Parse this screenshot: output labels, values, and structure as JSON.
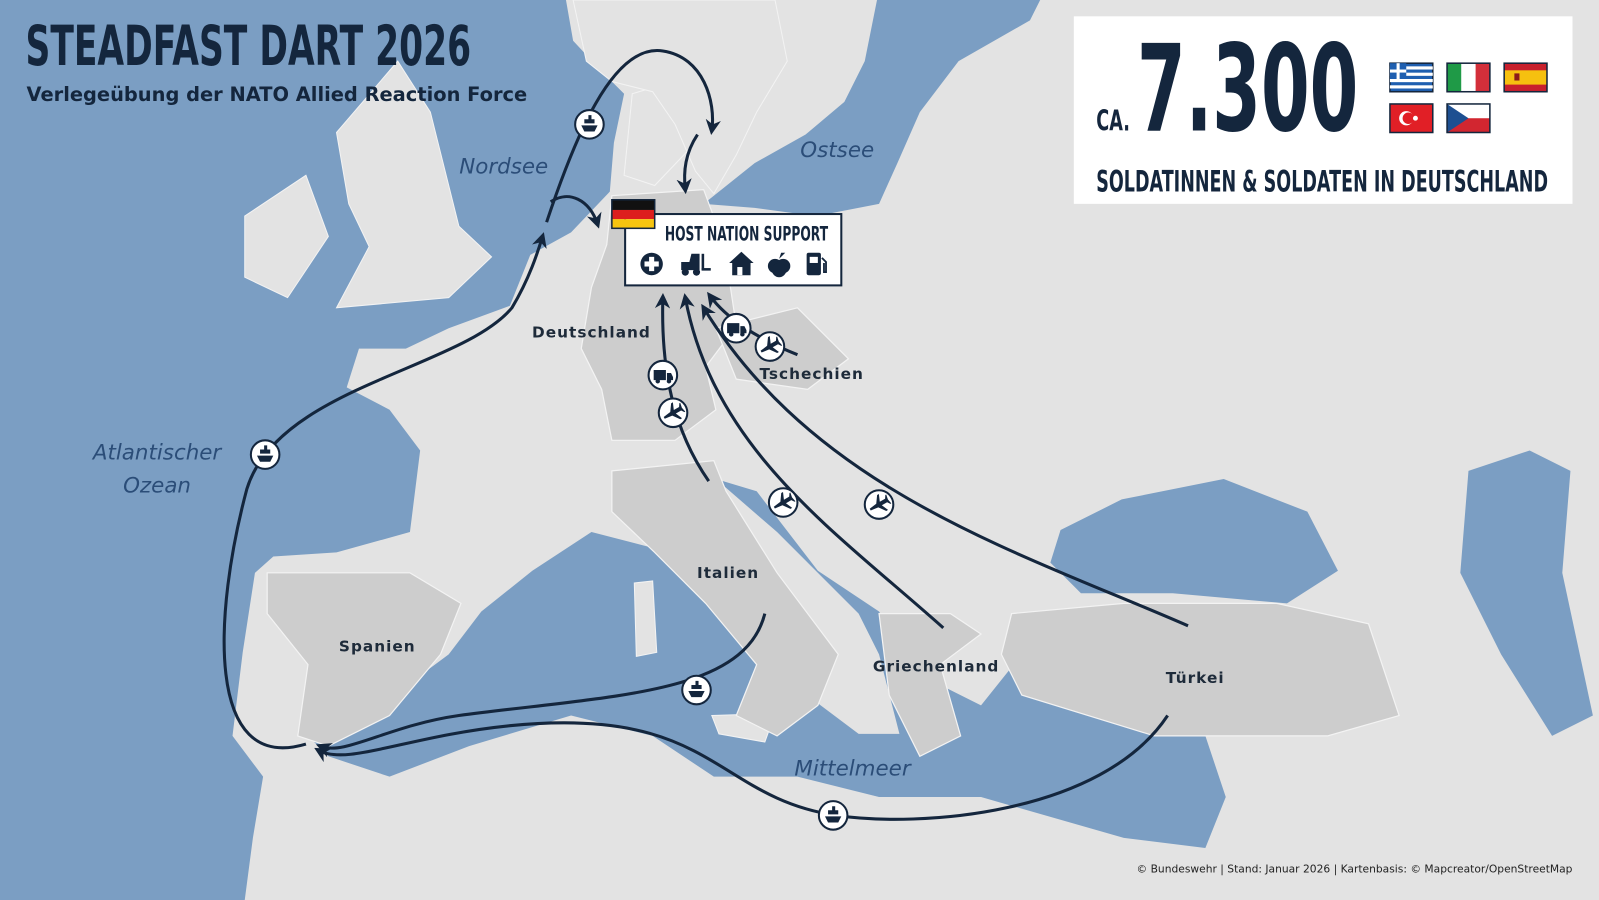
{
  "header": {
    "title": "STEADFAST DART 2026",
    "subtitle": "Verlegeübung der NATO Allied Reaction Force"
  },
  "stats_box": {
    "prefix": "CA.",
    "number": "7.300",
    "caption": "SOLDATINNEN & SOLDATEN IN DEUTSCHLAND",
    "flags": [
      "Griechenland",
      "Italien",
      "Spanien",
      "Türkei",
      "Tschechien"
    ]
  },
  "host_nation_support": {
    "title": "HOST NATION SUPPORT",
    "flag": "Deutschland",
    "icons": [
      "medical-cross-icon",
      "forklift-icon",
      "house-icon",
      "apple-icon",
      "fuel-pump-icon"
    ]
  },
  "countries": {
    "deutschland": "Deutschland",
    "tschechien": "Tschechien",
    "italien": "Italien",
    "spanien": "Spanien",
    "griechenland": "Griechenland",
    "tuerkei": "Türkei"
  },
  "seas": {
    "nordsee": "Nordsee",
    "ostsee": "Ostsee",
    "atlantik_1": "Atlantischer",
    "atlantik_2": "Ozean",
    "mittelmeer": "Mittelmeer"
  },
  "transport_icons": [
    "ship-icon",
    "plane-icon",
    "truck-icon"
  ],
  "colors": {
    "sea": "#7b9ec3",
    "land": "#e3e3e3",
    "participating_country": "#cdcdcd",
    "route": "#14263d"
  },
  "footer": "© Bundeswehr | Stand: Januar 2026 | Kartenbasis: © Mapcreator/OpenStreetMap"
}
